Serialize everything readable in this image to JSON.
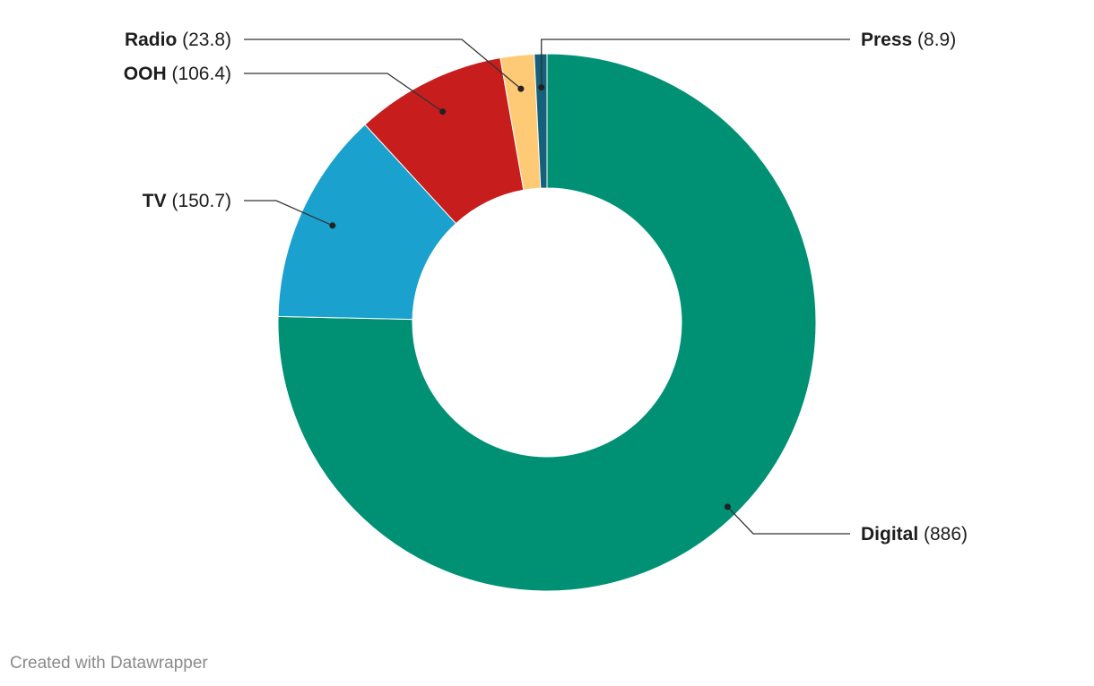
{
  "chart_data": {
    "type": "pie",
    "donut": true,
    "title": "",
    "slices": [
      {
        "name": "Digital",
        "value": 886,
        "color": "#009174"
      },
      {
        "name": "TV",
        "value": 150.7,
        "color": "#1aa1ce"
      },
      {
        "name": "OOH",
        "value": 106.4,
        "color": "#c71e1d"
      },
      {
        "name": "Radio",
        "value": 23.8,
        "color": "#ffca76"
      },
      {
        "name": "Press",
        "value": 8.9,
        "color": "#15607a"
      }
    ]
  },
  "footer": {
    "text": "Created with Datawrapper"
  }
}
